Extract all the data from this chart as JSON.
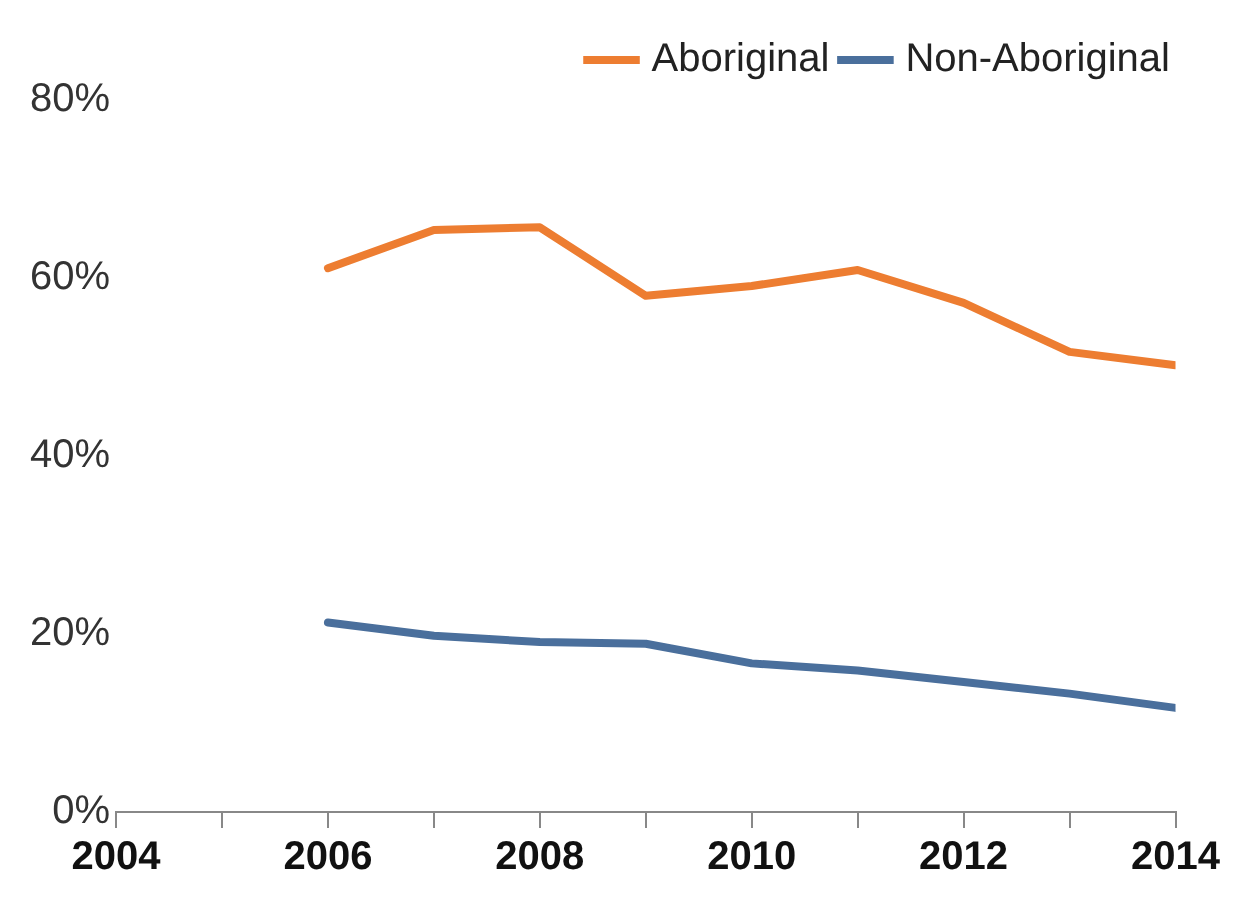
{
  "chart_data": {
    "type": "line",
    "x": [
      2006,
      2007,
      2008,
      2009,
      2010,
      2011,
      2012,
      2013,
      2014
    ],
    "series": [
      {
        "name": "Aboriginal",
        "color": "#ed7d31",
        "values": [
          61.1,
          65.4,
          65.7,
          58.0,
          59.1,
          60.9,
          57.2,
          51.7,
          50.2
        ]
      },
      {
        "name": "Non-Aboriginal",
        "color": "#4a6f9c",
        "values": [
          21.3,
          19.8,
          19.1,
          18.9,
          16.7,
          15.9,
          14.6,
          13.3,
          11.7
        ]
      }
    ],
    "xlim": [
      2004,
      2014
    ],
    "xticks": [
      2004,
      {
        "value": 2005,
        "label": null
      },
      2006,
      {
        "value": 2007,
        "label": null
      },
      2008,
      {
        "value": 2009,
        "label": null
      },
      2010,
      {
        "value": 2011,
        "label": null
      },
      2012,
      {
        "value": 2013,
        "label": null
      },
      2014
    ],
    "ylim": [
      0,
      80
    ],
    "yticks": [
      {
        "value": 0,
        "label": "0%"
      },
      {
        "value": 20,
        "label": "20%"
      },
      {
        "value": 40,
        "label": "40%"
      },
      {
        "value": 60,
        "label": "60%"
      },
      {
        "value": 80,
        "label": "80%"
      }
    ],
    "grid": false,
    "legend": "top right",
    "marker": "none",
    "line_style": "solid"
  }
}
